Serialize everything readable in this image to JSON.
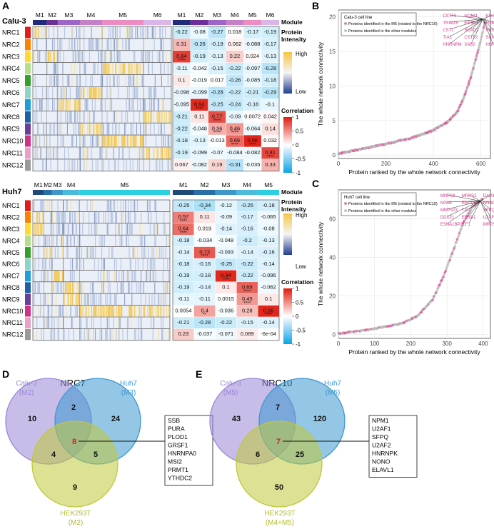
{
  "panels": {
    "A": "A",
    "B": "B",
    "C": "C",
    "D": "D",
    "E": "E"
  },
  "heatmaps": [
    {
      "cell_line": "Calu-3",
      "modules": [
        "M1",
        "M2",
        "M3",
        "M4",
        "M5",
        "M6"
      ],
      "module_widths": [
        0.1,
        0.08,
        0.16,
        0.16,
        0.3,
        0.2
      ],
      "module_colors": [
        "#1f2a7a",
        "#6e2f9a",
        "#9b66c8",
        "#c680c8",
        "#ec8cc0",
        "#d9b5e8"
      ],
      "col_header": "Module",
      "rows": [
        "NRC1",
        "NRC2",
        "NRC3",
        "NRC4",
        "NRC5",
        "NRC6",
        "NRC7",
        "NRC8",
        "NRC9",
        "NRC10",
        "NRC11",
        "NRC12"
      ],
      "corr": [
        [
          -0.22,
          -0.08,
          -0.27,
          0.018,
          -0.17,
          -0.19
        ],
        [
          0.31,
          -0.26,
          -0.19,
          0.062,
          -0.088,
          -0.17
        ],
        [
          0.84,
          -0.19,
          -0.13,
          0.22,
          0.024,
          -0.13
        ],
        [
          -0.11,
          -0.042,
          -0.15,
          -0.22,
          -0.097,
          -0.28
        ],
        [
          0.1,
          -0.019,
          0.017,
          -0.26,
          -0.085,
          -0.18
        ],
        [
          -0.098,
          -0.099,
          -0.28,
          -0.22,
          -0.21,
          -0.29
        ],
        [
          -0.095,
          0.94,
          -0.25,
          -0.24,
          -0.16,
          -0.1
        ],
        [
          -0.21,
          0.11,
          0.77,
          -0.09,
          0.0072,
          0.042
        ],
        [
          -0.22,
          -0.048,
          0.36,
          0.46,
          -0.064,
          0.14
        ],
        [
          -0.18,
          -0.13,
          -0.013,
          0.66,
          0.96,
          0.032
        ],
        [
          -0.19,
          -0.099,
          -0.07,
          -0.084,
          -0.082,
          0.81
        ],
        [
          0.067,
          -0.082,
          0.19,
          -0.31,
          -0.035,
          0.33
        ]
      ],
      "corr_labels": [
        [
          "-0.22",
          "-0.08",
          "-0.27",
          "0.018",
          "-0.17",
          "-0.19"
        ],
        [
          "0.31",
          "-0.26",
          "-0.19",
          "0.062",
          "-0.088",
          "-0.17"
        ],
        [
          "0.84",
          "-0.19",
          "-0.13",
          "0.22",
          "0.024",
          "-0.13"
        ],
        [
          "-0.11",
          "-0.042",
          "-0.15",
          "-0.22",
          "-0.097",
          "-0.28"
        ],
        [
          "0.1",
          "-0.019",
          "0.017",
          "-0.26",
          "-0.085",
          "-0.18"
        ],
        [
          "-0.098",
          "-0.099",
          "-0.28",
          "-0.22",
          "-0.21",
          "-0.29"
        ],
        [
          "-0.095",
          "0.94",
          "-0.25",
          "-0.24",
          "-0.16",
          "-0.1"
        ],
        [
          "-0.21",
          "0.11",
          "0.77",
          "-0.09",
          "0.0072",
          "0.042"
        ],
        [
          "-0.22",
          "-0.048",
          "0.36",
          "0.46",
          "-0.064",
          "0.14"
        ],
        [
          "-0.18",
          "-0.13",
          "-0.013",
          "0.66",
          "0.96",
          "0.032"
        ],
        [
          "-0.19",
          "-0.099",
          "-0.07",
          "-0.084",
          "-0.082",
          "0.81"
        ],
        [
          "0.067",
          "-0.082",
          "0.19",
          "-0.31",
          "-0.035",
          "0.33"
        ]
      ],
      "stars": [
        [
          2,
          0,
          "****"
        ],
        [
          6,
          1,
          "****"
        ],
        [
          7,
          2,
          "****"
        ],
        [
          8,
          2,
          "****"
        ],
        [
          8,
          3,
          "****"
        ],
        [
          9,
          3,
          "****"
        ],
        [
          9,
          4,
          "****"
        ],
        [
          10,
          5,
          "****"
        ]
      ],
      "highlight_row_module": [
        0,
        null,
        1,
        4,
        null,
        3,
        2,
        5,
        3,
        4,
        5,
        null
      ]
    },
    {
      "cell_line": "Huh7",
      "modules": [
        "M1",
        "M2",
        "M3",
        "M4",
        "M5"
      ],
      "module_widths": [
        0.08,
        0.06,
        0.08,
        0.12,
        0.66
      ],
      "module_colors": [
        "#1d4a78",
        "#2a6ea8",
        "#3f97c9",
        "#4cbbd9",
        "#2ccfdf"
      ],
      "col_header": "Module",
      "rows": [
        "NRC1",
        "NRC2",
        "NRC3",
        "NRC4",
        "NRC5",
        "NRC6",
        "NRC7",
        "NRC8",
        "NRC9",
        "NRC10",
        "NRC11",
        "NRC12"
      ],
      "corr": [
        [
          -0.25,
          -0.34,
          -0.12,
          -0.25,
          -0.18
        ],
        [
          0.57,
          0.11,
          -0.09,
          -0.17,
          -0.065
        ],
        [
          0.64,
          0.019,
          -0.14,
          -0.16,
          -0.08
        ],
        [
          -0.18,
          -0.034,
          -0.048,
          -0.2,
          -0.13
        ],
        [
          -0.14,
          0.73,
          -0.093,
          -0.14,
          -0.16
        ],
        [
          -0.18,
          -0.16,
          -0.25,
          -0.22,
          -0.14
        ],
        [
          -0.19,
          -0.18,
          0.94,
          -0.22,
          -0.096
        ],
        [
          -0.19,
          -0.14,
          0.1,
          0.69,
          -0.062
        ],
        [
          -0.11,
          -0.11,
          0.0015,
          0.45,
          0.1
        ],
        [
          0.0054,
          0.4,
          -0.036,
          0.28,
          0.95
        ],
        [
          -0.21,
          -0.28,
          -0.22,
          -0.15,
          -0.14
        ],
        [
          0.23,
          -0.037,
          -0.071,
          0.089,
          -0.0006
        ]
      ],
      "corr_labels": [
        [
          "-0.25",
          "-0.34",
          "-0.12",
          "-0.25",
          "-0.18"
        ],
        [
          "0.57",
          "0.11",
          "-0.09",
          "-0.17",
          "-0.065"
        ],
        [
          "0.64",
          "0.019",
          "-0.14",
          "-0.16",
          "-0.08"
        ],
        [
          "-0.18",
          "-0.034",
          "-0.048",
          "-0.2",
          "-0.13"
        ],
        [
          "-0.14",
          "0.73",
          "-0.093",
          "-0.14",
          "-0.16"
        ],
        [
          "-0.18",
          "-0.16",
          "-0.25",
          "-0.22",
          "-0.14"
        ],
        [
          "-0.19",
          "-0.18",
          "0.94",
          "-0.22",
          "-0.096"
        ],
        [
          "-0.19",
          "-0.14",
          "0.1",
          "0.69",
          "-0.062"
        ],
        [
          "-0.11",
          "-0.11",
          "0.0015",
          "0.45",
          "0.1"
        ],
        [
          "0.0054",
          "0.4",
          "-0.036",
          "0.28",
          "0.95"
        ],
        [
          "-0.21",
          "-0.28",
          "-0.22",
          "-0.15",
          "-0.14"
        ],
        [
          "0.23",
          "-0.037",
          "-0.071",
          "0.089",
          "-6e-04"
        ]
      ],
      "stars": [
        [
          0,
          1,
          "*"
        ],
        [
          1,
          0,
          "****"
        ],
        [
          2,
          0,
          "****"
        ],
        [
          4,
          1,
          "****"
        ],
        [
          6,
          2,
          "****"
        ],
        [
          7,
          3,
          "****"
        ],
        [
          8,
          3,
          "****"
        ],
        [
          9,
          1,
          "**"
        ],
        [
          9,
          4,
          "****"
        ]
      ],
      "highlight_row_module": [
        null,
        0,
        0,
        null,
        1,
        null,
        2,
        3,
        3,
        4,
        null,
        null
      ]
    }
  ],
  "nrc_colors": [
    "#e31a1c",
    "#ff7f00",
    "#ffd92f",
    "#b2df8a",
    "#33a02c",
    "#8dd3c7",
    "#1f9ed9",
    "#1f5fa8",
    "#6a3d9a",
    "#d0308a",
    "#e7a0c8",
    "#999999"
  ],
  "legend": {
    "intensity_title": "Protein\nIntensity",
    "intensity_high": "High",
    "intensity_low": "Low",
    "corr_title": "Correlation",
    "corr_ticks": [
      "1",
      "0.5",
      "0",
      "-0.5",
      "-1"
    ]
  },
  "chart_data": [
    {
      "type": "scatter",
      "panel": "B",
      "legend_title": "Calu-3 cell line",
      "legend_entries": [
        "Proteins identified in the M5 (related to the NRC10)",
        "Proteins identified in the other modules"
      ],
      "xlabel": "Protein ranked by the whole network connectivity",
      "ylabel": "The whole network connectivity",
      "xlim": [
        0,
        640
      ],
      "ylim": [
        -0.5,
        21
      ],
      "xticks": [
        0,
        200,
        400,
        600
      ],
      "yticks": [
        0,
        5,
        10,
        15,
        20
      ],
      "n": 620,
      "curve": [
        [
          0,
          0.2
        ],
        [
          100,
          0.9
        ],
        [
          200,
          1.6
        ],
        [
          300,
          2.4
        ],
        [
          400,
          3.6
        ],
        [
          460,
          4.8
        ],
        [
          500,
          6.2
        ],
        [
          530,
          8.5
        ],
        [
          555,
          11
        ],
        [
          575,
          13.5
        ],
        [
          595,
          16
        ],
        [
          610,
          18.2
        ],
        [
          620,
          19.9
        ]
      ],
      "labels": [
        "CSTF3",
        "NONO",
        "KRAS1",
        "TRIM25",
        "EIF3E1",
        "FUBP3",
        "CSTL",
        "SDAD2",
        "KHSRP",
        "TIA1",
        "CSTF2",
        "SAM68",
        "HNRNPM",
        "XAB2",
        "HNRNPK"
      ]
    },
    {
      "type": "scatter",
      "panel": "C",
      "legend_title": "Huh7 cell line",
      "legend_entries": [
        "Proteins identified in the M5 (related to the NRC10)",
        "Proteins identified in the other modules"
      ],
      "xlabel": "Protein ranked by the whole network connectivity",
      "ylabel": "The whole network connectivity",
      "xlim": [
        0,
        420
      ],
      "ylim": [
        -2,
        75
      ],
      "xticks": [
        0,
        100,
        200,
        300,
        400
      ],
      "yticks": [
        0,
        20,
        40,
        60
      ],
      "n": 400,
      "curve": [
        [
          0,
          0.5
        ],
        [
          100,
          3
        ],
        [
          180,
          6
        ],
        [
          220,
          10
        ],
        [
          260,
          18
        ],
        [
          290,
          30
        ],
        [
          320,
          45
        ],
        [
          345,
          58
        ],
        [
          370,
          66
        ],
        [
          395,
          70
        ]
      ],
      "labels": [
        "MRPS9",
        "MRPS2",
        "DAP3",
        "NPM1",
        "ERCC6",
        "HNRP13",
        "MRPS23",
        "TIA1",
        "SFPQ",
        "DDX21",
        "ESRA1",
        "U2AF1",
        "ESNA1BP2",
        "ILF1",
        "MRPS25"
      ]
    }
  ],
  "venns": [
    {
      "title": "NRC7",
      "sets": [
        {
          "name": "Calu-3",
          "sub": "(M2)",
          "color": "#9a86d6"
        },
        {
          "name": "Huh7",
          "sub": "(M3)",
          "color": "#3d97d0"
        },
        {
          "name": "HEK293T",
          "sub": "(M2)",
          "color": "#bfc83a"
        }
      ],
      "counts": {
        "a": "10",
        "ab": "2",
        "b": "24",
        "ac": "4",
        "abc": "8",
        "bc": "5",
        "c": "9"
      },
      "proteins": [
        "SSB",
        "PURA",
        "PLOD1",
        "GRSF1",
        "HNRNPA0",
        "MSI2",
        "PRMT1",
        "YTHDC2"
      ]
    },
    {
      "title": "NRC10",
      "sets": [
        {
          "name": "Calu-3",
          "sub": "(M5)",
          "color": "#9a86d6"
        },
        {
          "name": "Huh7",
          "sub": "(M5)",
          "color": "#3d97d0"
        },
        {
          "name": "HEK293T",
          "sub": "(M4+M5)",
          "color": "#bfc83a"
        }
      ],
      "counts": {
        "a": "43",
        "ab": "7",
        "b": "120",
        "ac": "6",
        "abc": "7",
        "bc": "25",
        "c": "50"
      },
      "proteins": [
        "NPM1",
        "U2AF1",
        "SFPQ",
        "U2AF2",
        "HNRNPK",
        "NONO",
        "ELAVL1"
      ]
    }
  ]
}
